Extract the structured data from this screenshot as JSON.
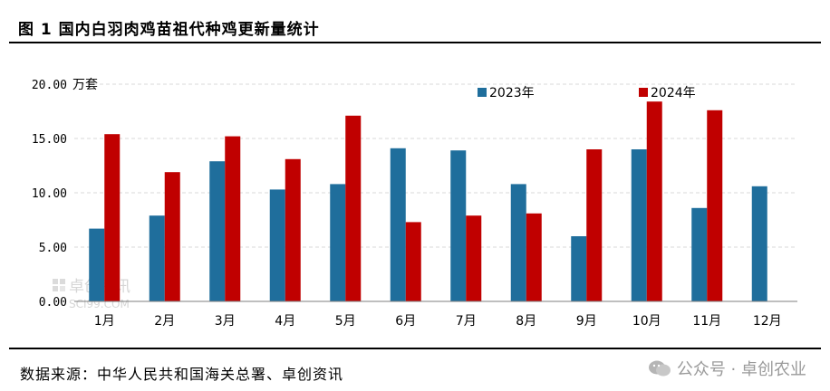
{
  "title": "图 1  国内白羽肉鸡苗祖代种鸡更新量统计",
  "source": "数据来源：中华人民共和国海关总署、卓创资讯",
  "watermark": {
    "brand": "卓创资讯",
    "site": "SCI99.COM",
    "account": "公众号 · 卓创农业"
  },
  "colors": {
    "series_2023": "#1f6e9c",
    "series_2024": "#c00000",
    "grid": "#d9d9d9"
  },
  "chart_data": {
    "type": "bar",
    "unit": "万套",
    "categories": [
      "1月",
      "2月",
      "3月",
      "4月",
      "5月",
      "6月",
      "7月",
      "8月",
      "9月",
      "10月",
      "11月",
      "12月"
    ],
    "series": [
      {
        "name": "2023年",
        "values": [
          6.7,
          7.9,
          12.9,
          10.3,
          10.8,
          14.1,
          13.9,
          10.8,
          6.0,
          14.0,
          8.6,
          10.6
        ]
      },
      {
        "name": "2024年",
        "values": [
          15.4,
          11.9,
          15.2,
          13.1,
          17.1,
          7.3,
          7.9,
          8.1,
          14.0,
          18.4,
          17.6,
          null
        ]
      }
    ],
    "y_ticks": [
      "0.00",
      "5.00",
      "10.00",
      "15.00",
      "20.00"
    ],
    "ylim": [
      0,
      20
    ],
    "grid": true,
    "legend_position": "top-right"
  }
}
